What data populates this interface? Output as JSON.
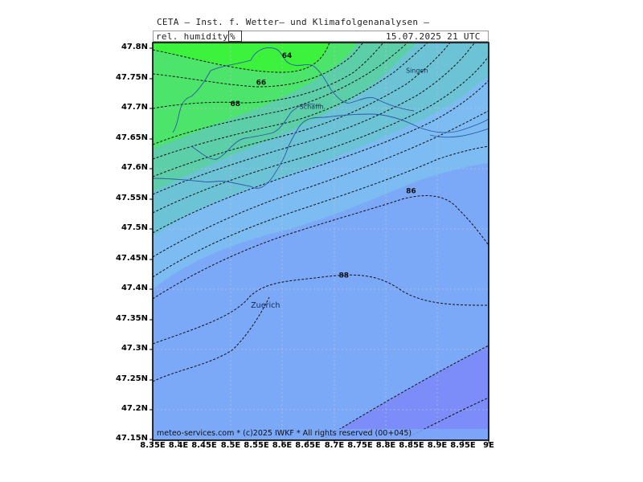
{
  "header": {
    "model_title": "CETA – Inst. f. Wetter– und Klimafolgenanalysen –",
    "parameter": "rel. humidity",
    "unit": "%",
    "valid_time": "15.07.2025 21 UTC"
  },
  "footer": {
    "credit": "meteo-services.com * (c)2025 IWKF * All rights reserved (00+045)"
  },
  "places": [
    {
      "name": "Singen",
      "lon": 8.84,
      "lat": 47.76
    },
    {
      "name": "Schaffh.",
      "lon": 8.634,
      "lat": 47.7
    },
    {
      "name": "Zuerich",
      "lon": 8.54,
      "lat": 47.37
    }
  ],
  "contour_labels": [
    {
      "text": "64",
      "lon": 8.6,
      "lat": 47.785
    },
    {
      "text": "66",
      "lon": 8.55,
      "lat": 47.74
    },
    {
      "text": "68",
      "lon": 8.5,
      "lat": 47.705
    },
    {
      "text": "86",
      "lon": 8.84,
      "lat": 47.56
    },
    {
      "text": "88",
      "lon": 8.71,
      "lat": 47.42
    }
  ],
  "chart_data": {
    "type": "heatmap",
    "xlabel": "",
    "ylabel": "",
    "xlim": [
      8.35,
      9.0
    ],
    "ylim": [
      47.15,
      47.81
    ],
    "x_ticks": [
      "8.35E",
      "8.4E",
      "8.45E",
      "8.5E",
      "8.55E",
      "8.6E",
      "8.65E",
      "8.7E",
      "8.75E",
      "8.8E",
      "8.85E",
      "8.9E",
      "8.95E",
      "9E"
    ],
    "y_ticks": [
      "47.8N",
      "47.75N",
      "47.7N",
      "47.65N",
      "47.6N",
      "47.55N",
      "47.5N",
      "47.45N",
      "47.4N",
      "47.35N",
      "47.3N",
      "47.25N",
      "47.2N",
      "47.15N"
    ],
    "contour_interval": 2,
    "colors": {
      "lt64": "#3cf23c",
      "b64_70": "#4ce46a",
      "b70_76": "#5ccfa8",
      "b76_82": "#6cc3d6",
      "b82_86": "#7cbcf2",
      "b86_90": "#7ca8f8",
      "gt90": "#7c8cf8"
    }
  }
}
